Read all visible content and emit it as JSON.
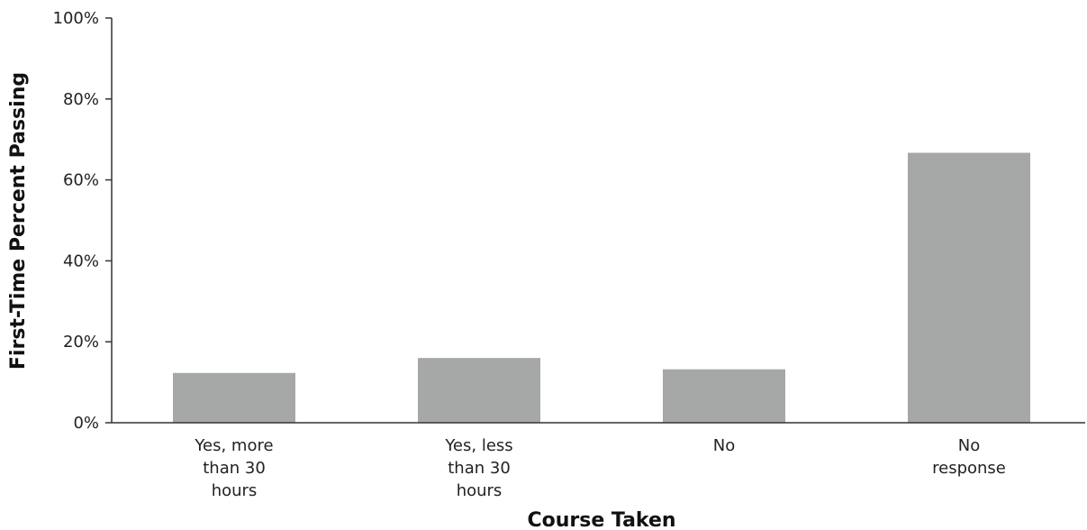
{
  "chart_data": {
    "type": "bar",
    "categories": [
      [
        "Yes, more",
        "than 30",
        "hours"
      ],
      [
        "Yes, less",
        "than 30",
        "hours"
      ],
      [
        "No"
      ],
      [
        "No",
        "response"
      ]
    ],
    "values": [
      12.3,
      16.0,
      13.2,
      66.7
    ],
    "xlabel": "Course Taken",
    "ylabel": "First-Time Percent Passing",
    "ylim": [
      0,
      100
    ],
    "yticks": [
      0,
      20,
      40,
      60,
      80,
      100
    ],
    "ytick_labels": [
      "0%",
      "20%",
      "40%",
      "60%",
      "80%",
      "100%"
    ],
    "grid": false,
    "bar_color": "#a6a8a7",
    "axis_color": "#333333"
  }
}
